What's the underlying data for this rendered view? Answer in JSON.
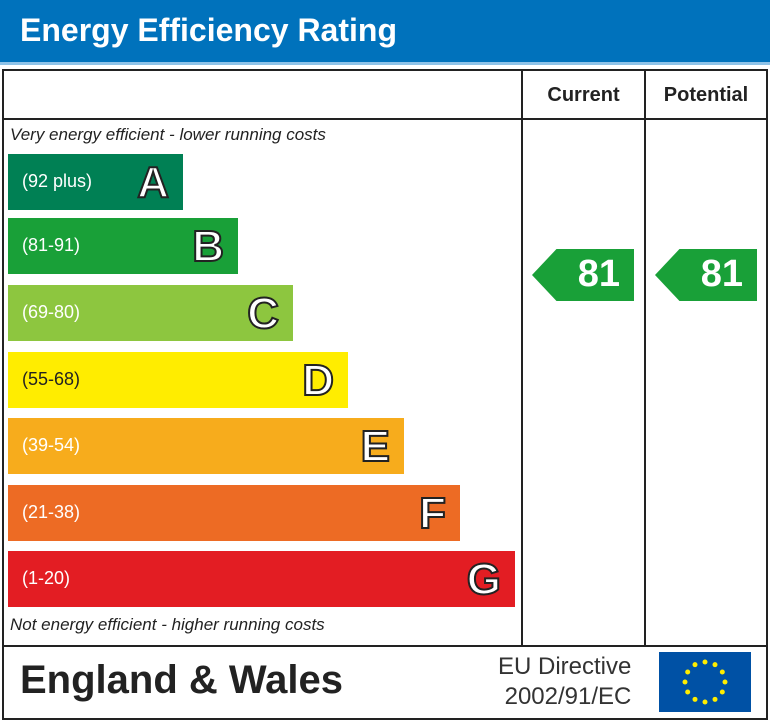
{
  "title": "Energy Efficiency Rating",
  "columns": {
    "current": "Current",
    "potential": "Potential"
  },
  "notes": {
    "top": "Very energy efficient - lower running costs",
    "bottom": "Not energy efficient - higher running costs"
  },
  "footer": {
    "region": "England & Wales",
    "directive_line1": "EU Directive",
    "directive_line2": "2002/91/EC"
  },
  "chart_data": {
    "type": "bar",
    "categories": [
      "A",
      "B",
      "C",
      "D",
      "E",
      "F",
      "G"
    ],
    "ranges": [
      "(92 plus)",
      "(81-91)",
      "(69-80)",
      "(55-68)",
      "(39-54)",
      "(21-38)",
      "(1-20)"
    ],
    "colors": [
      "#008054",
      "#19a038",
      "#8dc63f",
      "#ffed00",
      "#f7ac1c",
      "#ed6b24",
      "#e31d23"
    ],
    "current": 81,
    "potential": 81,
    "current_color": "#19a038",
    "potential_color": "#19a038"
  }
}
